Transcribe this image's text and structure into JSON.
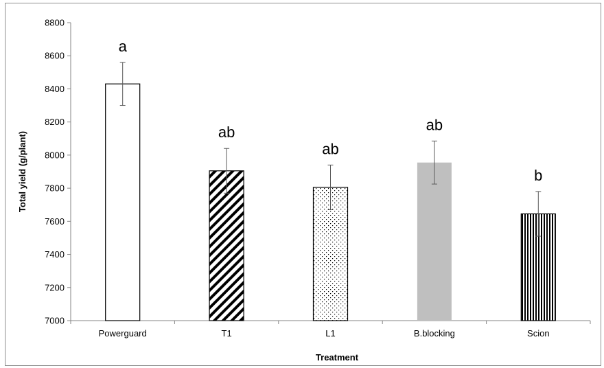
{
  "chart_data": {
    "type": "bar",
    "title": "",
    "xlabel": "Treatment",
    "ylabel": "Total yield (g/plant)",
    "ylim": [
      7000,
      8800
    ],
    "yticks": [
      7000,
      7200,
      7400,
      7600,
      7800,
      8000,
      8200,
      8400,
      8600,
      8800
    ],
    "categories": [
      "Powerguard",
      "T1",
      "L1",
      "B.blocking",
      "Scion"
    ],
    "values": [
      8430,
      7905,
      7805,
      7955,
      7645
    ],
    "errors": [
      130,
      135,
      135,
      130,
      135
    ],
    "significance": [
      "a",
      "ab",
      "ab",
      "ab",
      "b"
    ],
    "fills": [
      "none",
      "diagonal-hatch",
      "dots",
      "gray",
      "vertical-lines"
    ],
    "colors": {
      "gray": "#bfbfbf",
      "outline": "#000000",
      "axis": "#868686"
    },
    "grid": false,
    "legend": "none"
  }
}
